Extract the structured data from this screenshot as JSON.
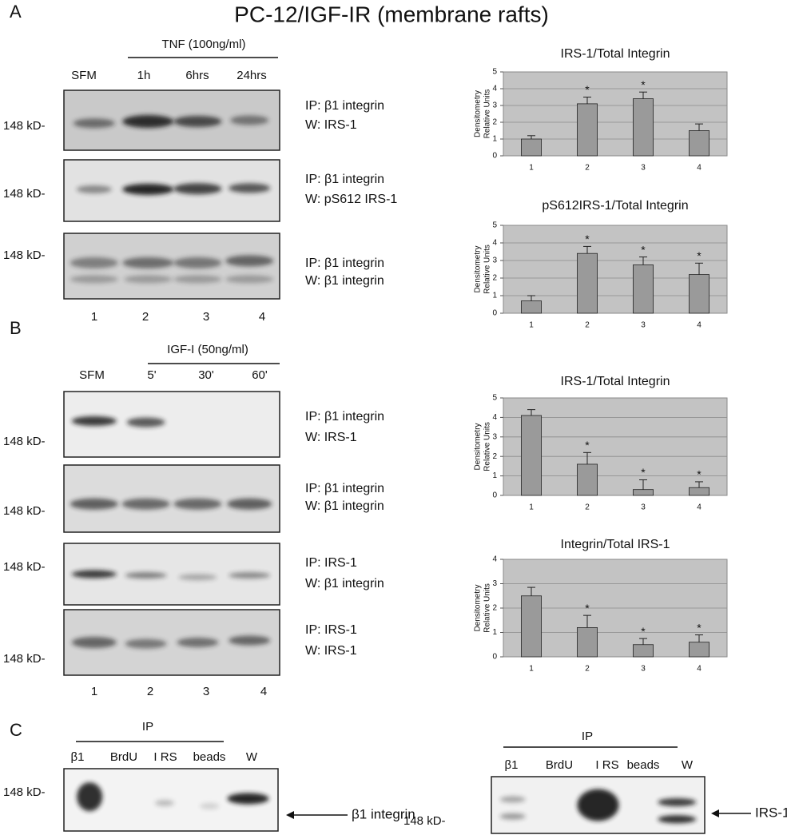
{
  "figure_title": "PC-12/IGF-IR (membrane rafts)",
  "panels": [
    {
      "label": "A",
      "treatment": "TNF (100ng/ml)",
      "lanes": [
        "SFM",
        "1h",
        "6hrs",
        "24hrs"
      ],
      "blots": [
        {
          "marker": "148 kD-",
          "ip": "IP: β1 integrin",
          "w": "W: IRS-1"
        },
        {
          "marker": "148 kD-",
          "ip": "IP: β1 integrin",
          "w": "W: pS612 IRS-1"
        },
        {
          "marker": "148 kD-",
          "ip": "IP: β1 integrin",
          "w": "W: β1 integrin"
        }
      ],
      "lane_numbers": [
        "1",
        "2",
        "3",
        "4"
      ]
    },
    {
      "label": "B",
      "treatment": "IGF-I (50ng/ml)",
      "lanes": [
        "SFM",
        "5'",
        "30'",
        "60'"
      ],
      "blots": [
        {
          "marker": "148 kD-",
          "ip": "IP: β1 integrin",
          "w": "W: IRS-1"
        },
        {
          "marker": "148 kD-",
          "ip": "IP: β1 integrin",
          "w": "W: β1 integrin"
        },
        {
          "marker": "148 kD-",
          "ip": "IP: IRS-1",
          "w": "W: β1 integrin"
        },
        {
          "marker": "148 kD-",
          "ip": "IP: IRS-1",
          "w": "W: IRS-1"
        }
      ],
      "lane_numbers": [
        "1",
        "2",
        "3",
        "4"
      ]
    },
    {
      "label": "C",
      "blots": [
        {
          "header": "IP",
          "lanes": [
            "β1",
            "BrdU",
            "I RS",
            "beads",
            "W"
          ],
          "marker": "148 kD-",
          "arrow_label": "β1 integrin"
        },
        {
          "header": "IP",
          "lanes": [
            "β1",
            "BrdU",
            "I RS",
            "beads",
            "W"
          ],
          "marker": "148 kD-",
          "arrow_label": "IRS-1"
        }
      ]
    }
  ],
  "chart_data": [
    {
      "type": "bar",
      "title": "IRS-1/Total Integrin",
      "y_label": [
        "Densitometry",
        "Relative Units"
      ],
      "categories": [
        "1",
        "2",
        "3",
        "4"
      ],
      "values": [
        1.0,
        3.1,
        3.4,
        1.5
      ],
      "errors": [
        0.2,
        0.4,
        0.4,
        0.4
      ],
      "color": "#9a9a9a",
      "ylim": [
        0,
        5
      ],
      "yticks": [
        0,
        1,
        2,
        3,
        4,
        5
      ],
      "grid": true,
      "annotations": [
        {
          "category": "2",
          "text": "*"
        },
        {
          "category": "3",
          "text": "*"
        }
      ]
    },
    {
      "type": "bar",
      "title": "pS612IRS-1/Total Integrin",
      "y_label": [
        "Densitometry",
        "Relative Units"
      ],
      "categories": [
        "1",
        "2",
        "3",
        "4"
      ],
      "values": [
        0.7,
        3.4,
        2.75,
        2.2
      ],
      "errors": [
        0.3,
        0.4,
        0.45,
        0.65
      ],
      "color": "#9a9a9a",
      "ylim": [
        0,
        5
      ],
      "yticks": [
        0,
        1,
        2,
        3,
        4,
        5
      ],
      "grid": true,
      "annotations": [
        {
          "category": "2",
          "text": "*"
        },
        {
          "category": "3",
          "text": "*"
        },
        {
          "category": "4",
          "text": "*"
        }
      ]
    },
    {
      "type": "bar",
      "title": "IRS-1/Total Integrin",
      "y_label": [
        "Densitometry",
        "Relative Units"
      ],
      "categories": [
        "1",
        "2",
        "3",
        "4"
      ],
      "values": [
        4.1,
        1.6,
        0.3,
        0.4
      ],
      "errors": [
        0.3,
        0.6,
        0.5,
        0.3
      ],
      "color": "#9a9a9a",
      "ylim": [
        0,
        5
      ],
      "yticks": [
        0,
        1,
        2,
        3,
        4,
        5
      ],
      "grid": true,
      "annotations": [
        {
          "category": "2",
          "text": "*"
        },
        {
          "category": "3",
          "text": "*"
        },
        {
          "category": "4",
          "text": "*"
        }
      ]
    },
    {
      "type": "bar",
      "title": "Integrin/Total IRS-1",
      "y_label": [
        "Densitometry",
        "Relative Units"
      ],
      "categories": [
        "1",
        "2",
        "3",
        "4"
      ],
      "values": [
        2.5,
        1.2,
        0.5,
        0.6
      ],
      "errors": [
        0.35,
        0.5,
        0.25,
        0.3
      ],
      "color": "#9a9a9a",
      "ylim": [
        0,
        4
      ],
      "yticks": [
        0,
        1,
        2,
        3,
        4
      ],
      "grid": true,
      "annotations": [
        {
          "category": "2",
          "text": "*"
        },
        {
          "category": "3",
          "text": "*"
        },
        {
          "category": "4",
          "text": "*"
        }
      ]
    }
  ]
}
